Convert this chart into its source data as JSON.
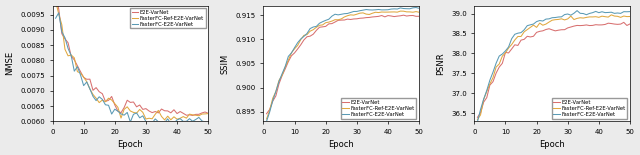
{
  "n_epochs": 50,
  "colors": {
    "E2E-VarNet": "#d87070",
    "FasterFC-Ref-E2E-VarNet": "#e0a840",
    "FasterFC-E2E-VarNet": "#5a9ab5"
  },
  "legend_labels": [
    "E2E-VarNet",
    "FasterFC-Ref-E2E-VarNet",
    "FasterFC-E2E-VarNet"
  ],
  "subplot1": {
    "ylabel": "NMSE",
    "xlabel": "Epoch",
    "ylim": [
      0.006,
      0.0098
    ],
    "yticks": [
      0.006,
      0.0065,
      0.007,
      0.0075,
      0.008,
      0.0085,
      0.009,
      0.0095
    ],
    "xlim": [
      0,
      50
    ],
    "xticks": [
      0,
      10,
      20,
      30,
      40,
      50
    ]
  },
  "subplot2": {
    "ylabel": "SSIM",
    "xlabel": "Epoch",
    "ylim": [
      0.893,
      0.917
    ],
    "yticks": [
      0.895,
      0.9,
      0.905,
      0.91,
      0.915
    ],
    "xlim": [
      0,
      50
    ],
    "xticks": [
      0,
      10,
      20,
      30,
      40,
      50
    ]
  },
  "subplot3": {
    "ylabel": "PSNR",
    "xlabel": "Epoch",
    "ylim": [
      36.3,
      39.2
    ],
    "yticks": [
      36.5,
      37.0,
      37.5,
      38.0,
      38.5,
      39.0
    ],
    "xlim": [
      0,
      50
    ],
    "xticks": [
      0,
      10,
      20,
      30,
      40,
      50
    ]
  },
  "figure_bgcolor": "#ebebeb",
  "axes_bgcolor": "white"
}
